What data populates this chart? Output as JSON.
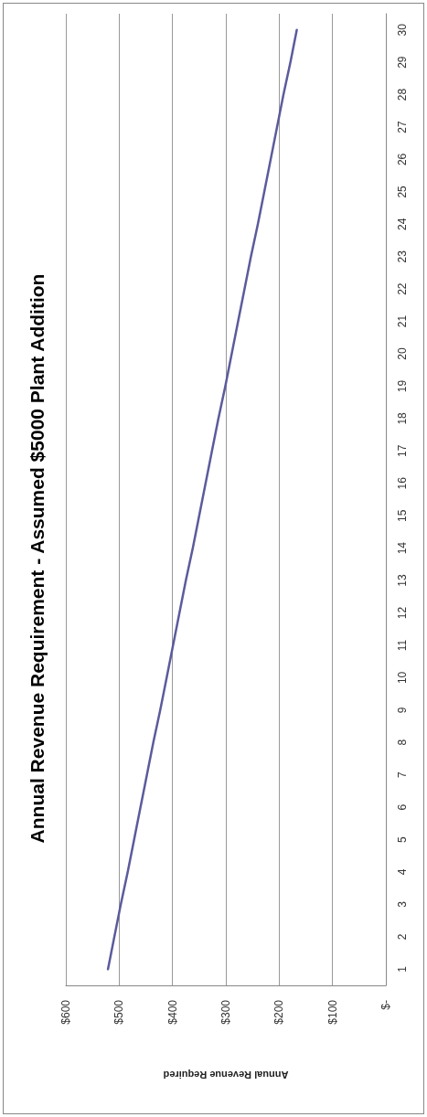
{
  "chart_data": {
    "type": "line",
    "orientation": "horizontal",
    "title": "Annual Revenue Requirement - Assumed $5000 Plant Addition",
    "xlabel": "Annual Revenue Required",
    "categories": [
      "30",
      "29",
      "28",
      "27",
      "26",
      "25",
      "24",
      "23",
      "22",
      "21",
      "20",
      "19",
      "18",
      "17",
      "16",
      "15",
      "14",
      "13",
      "12",
      "11",
      "10",
      "9",
      "8",
      "7",
      "6",
      "5",
      "4",
      "3",
      "2",
      "1"
    ],
    "series": [
      {
        "color": "#5b5b9c",
        "values": [
          167,
          179,
          192,
          204,
          216,
          228,
          240,
          253,
          265,
          277,
          289,
          301,
          314,
          326,
          338,
          350,
          362,
          375,
          387,
          399,
          411,
          423,
          436,
          448,
          460,
          472,
          484,
          497,
          509,
          521
        ]
      }
    ],
    "xlim": [
      600,
      0
    ],
    "xticks": [
      {
        "value": 600,
        "label": "$600"
      },
      {
        "value": 500,
        "label": "$500"
      },
      {
        "value": 400,
        "label": "$400"
      },
      {
        "value": 300,
        "label": "$300"
      },
      {
        "value": 200,
        "label": "$200"
      },
      {
        "value": 100,
        "label": "$100"
      },
      {
        "value": 0,
        "label": "$-"
      }
    ],
    "grid": "x",
    "marker": "none",
    "line_style": "solid"
  }
}
